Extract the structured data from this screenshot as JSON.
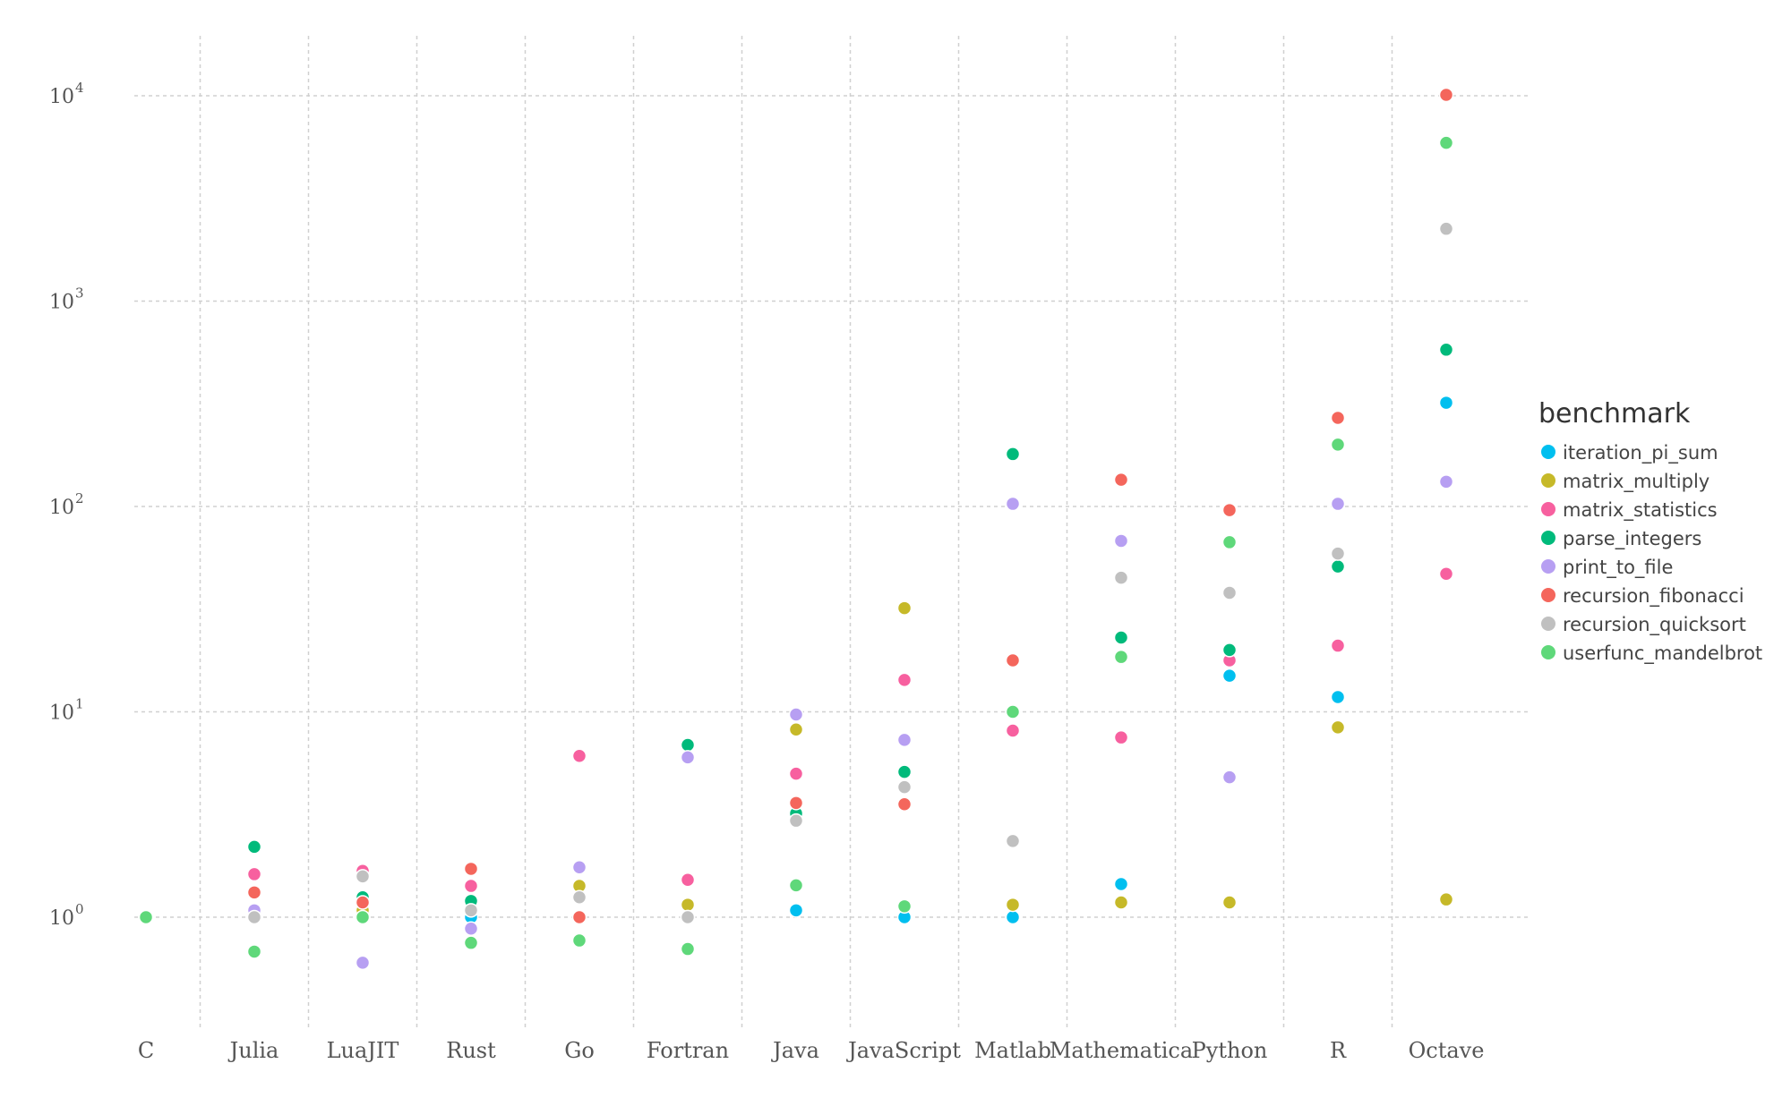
{
  "chart_data": {
    "type": "scatter",
    "title": "",
    "xlabel": "",
    "ylabel": "",
    "y_scale": "log10",
    "ylim": [
      0.3,
      14000
    ],
    "y_ticks": [
      {
        "value": 1,
        "base": "10",
        "exp": "0"
      },
      {
        "value": 10,
        "base": "10",
        "exp": "1"
      },
      {
        "value": 100,
        "base": "10",
        "exp": "2"
      },
      {
        "value": 1000,
        "base": "10",
        "exp": "3"
      },
      {
        "value": 10000,
        "base": "10",
        "exp": "4"
      }
    ],
    "grid": true,
    "legend_title": "benchmark",
    "legend_position": "right",
    "categories": [
      "C",
      "Julia",
      "LuaJIT",
      "Rust",
      "Go",
      "Fortran",
      "Java",
      "JavaScript",
      "Matlab",
      "Mathematica",
      "Python",
      "R",
      "Octave"
    ],
    "series": [
      {
        "name": "iteration_pi_sum",
        "color": "#00bfef",
        "values": [
          1,
          1.0,
          1.0,
          1.0,
          1.0,
          1.0,
          1.08,
          1.0,
          1.0,
          1.45,
          15,
          11.8,
          320
        ]
      },
      {
        "name": "matrix_multiply",
        "color": "#c6b929",
        "values": [
          1,
          1.0,
          1.08,
          1.08,
          1.42,
          1.15,
          8.2,
          32,
          1.15,
          1.18,
          1.18,
          8.4,
          1.22
        ]
      },
      {
        "name": "matrix_statistics",
        "color": "#f7609f",
        "values": [
          1,
          1.62,
          1.68,
          1.42,
          6.1,
          1.52,
          5.0,
          14.3,
          8.1,
          7.5,
          17.8,
          21,
          47
        ]
      },
      {
        "name": "parse_integers",
        "color": "#00ba7b",
        "values": [
          1,
          2.2,
          1.25,
          1.2,
          1.0,
          6.9,
          3.2,
          5.1,
          180,
          23,
          20,
          51,
          580
        ]
      },
      {
        "name": "print_to_file",
        "color": "#b79ff2",
        "values": [
          1,
          1.08,
          0.6,
          0.88,
          1.75,
          6.0,
          9.7,
          7.3,
          103,
          68,
          4.8,
          103,
          132
        ]
      },
      {
        "name": "recursion_fibonacci",
        "color": "#f4665c",
        "values": [
          1,
          1.32,
          1.18,
          1.72,
          1.0,
          1.0,
          3.6,
          3.55,
          17.8,
          135,
          96,
          270,
          10100
        ]
      },
      {
        "name": "recursion_quicksort",
        "color": "#c0c0c0",
        "values": [
          1,
          1.0,
          1.58,
          1.08,
          1.25,
          1.0,
          2.95,
          4.3,
          2.35,
          45,
          38,
          59,
          2250
        ]
      },
      {
        "name": "userfunc_mandelbrot",
        "color": "#5fd87a",
        "values": [
          1,
          0.68,
          1.0,
          0.75,
          0.77,
          0.7,
          1.43,
          1.13,
          10,
          18.5,
          67,
          200,
          5900
        ]
      }
    ]
  }
}
